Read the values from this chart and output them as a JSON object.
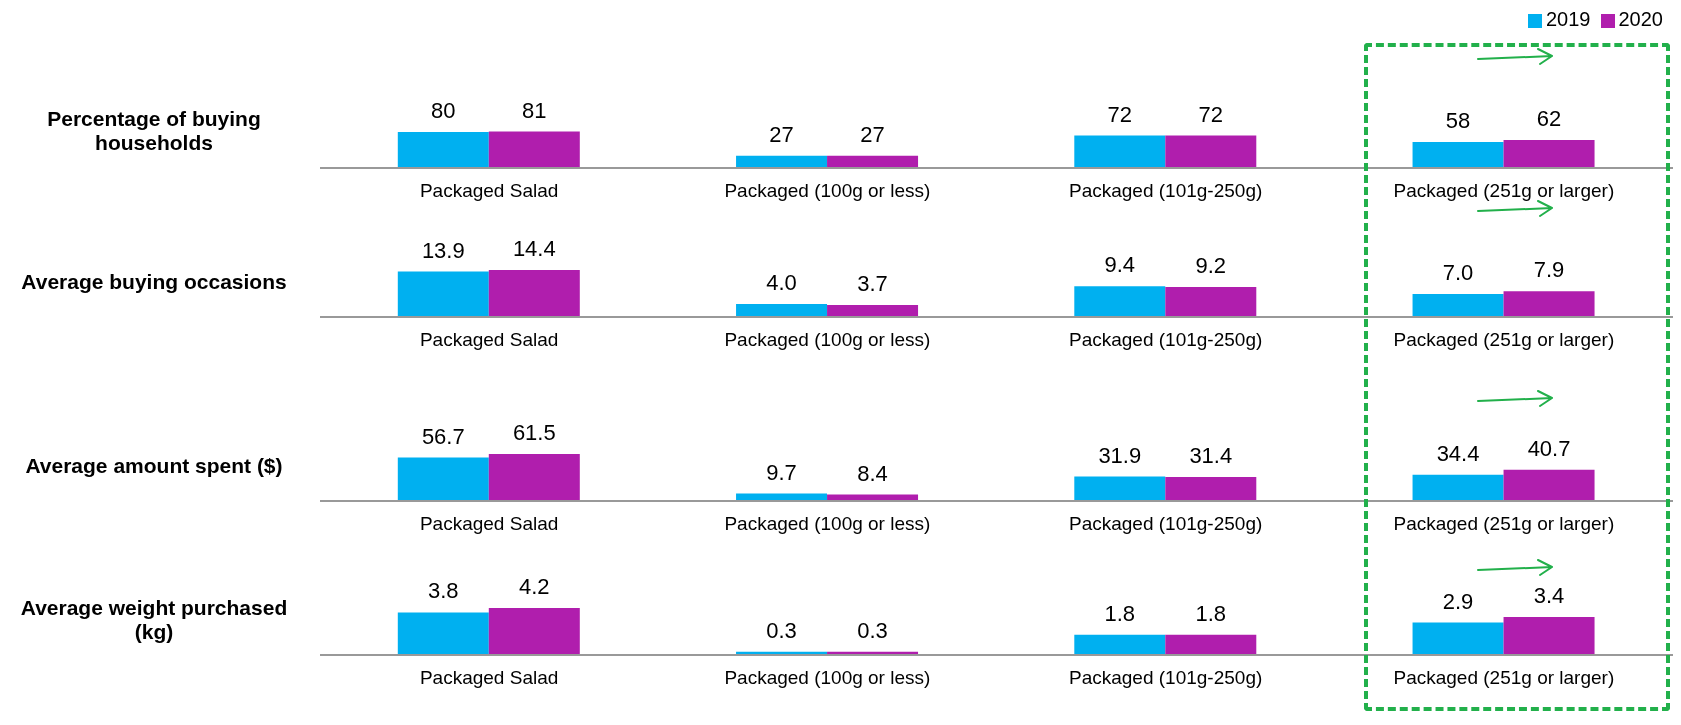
{
  "chart_data": [
    {
      "type": "bar",
      "ylabel": "Percentage of buying households",
      "categories": [
        "Packaged Salad",
        "Packaged (100g or less)",
        "Packaged (101g-250g)",
        "Packaged (251g or larger)"
      ],
      "legend": "top right",
      "series": [
        {
          "name": "2019",
          "color": "#00b0f0",
          "values": [
            80,
            27,
            72,
            58
          ],
          "value_labels": [
            "80",
            "27",
            "72",
            "58"
          ]
        },
        {
          "name": "2020",
          "color": "#b01ead",
          "values": [
            81,
            27,
            72,
            62
          ],
          "value_labels": [
            "81",
            "27",
            "72",
            "62"
          ]
        }
      ]
    },
    {
      "type": "bar",
      "ylabel": "Average buying occasions",
      "categories": [
        "Packaged Salad",
        "Packaged (100g or less)",
        "Packaged (101g-250g)",
        "Packaged (251g or larger)"
      ],
      "series": [
        {
          "color": "#00b0f0",
          "values": [
            13.9,
            4.0,
            9.4,
            7.0
          ],
          "value_labels": [
            "13.9",
            "4.0",
            "9.4",
            "7.0"
          ]
        },
        {
          "color": "#b01ead",
          "values": [
            14.4,
            3.7,
            9.2,
            7.9
          ],
          "value_labels": [
            "14.4",
            "3.7",
            "9.2",
            "7.9"
          ]
        }
      ]
    },
    {
      "type": "bar",
      "ylabel": "Average amount spent ($)",
      "categories": [
        "Packaged Salad",
        "Packaged (100g or less)",
        "Packaged (101g-250g)",
        "Packaged (251g or larger)"
      ],
      "series": [
        {
          "color": "#00b0f0",
          "values": [
            56.7,
            9.7,
            31.9,
            34.4
          ],
          "value_labels": [
            "56.7",
            "9.7",
            "31.9",
            "34.4"
          ]
        },
        {
          "color": "#b01ead",
          "values": [
            61.5,
            8.4,
            31.4,
            40.7
          ],
          "value_labels": [
            "61.5",
            "8.4",
            "31.4",
            "40.7"
          ]
        }
      ]
    },
    {
      "type": "bar",
      "ylabel": "Average weight purchased (kg)",
      "categories": [
        "Packaged Salad",
        "Packaged (100g or less)",
        "Packaged (101g-250g)",
        "Packaged (251g or larger)"
      ],
      "series": [
        {
          "color": "#00b0f0",
          "values": [
            3.8,
            0.3,
            1.8,
            2.9
          ],
          "value_labels": [
            "3.8",
            "0.3",
            "1.8",
            "2.9"
          ]
        },
        {
          "color": "#b01ead",
          "values": [
            4.2,
            0.3,
            1.8,
            3.4
          ],
          "value_labels": [
            "4.2",
            "0.3",
            "1.8",
            "3.4"
          ]
        }
      ]
    }
  ]
}
